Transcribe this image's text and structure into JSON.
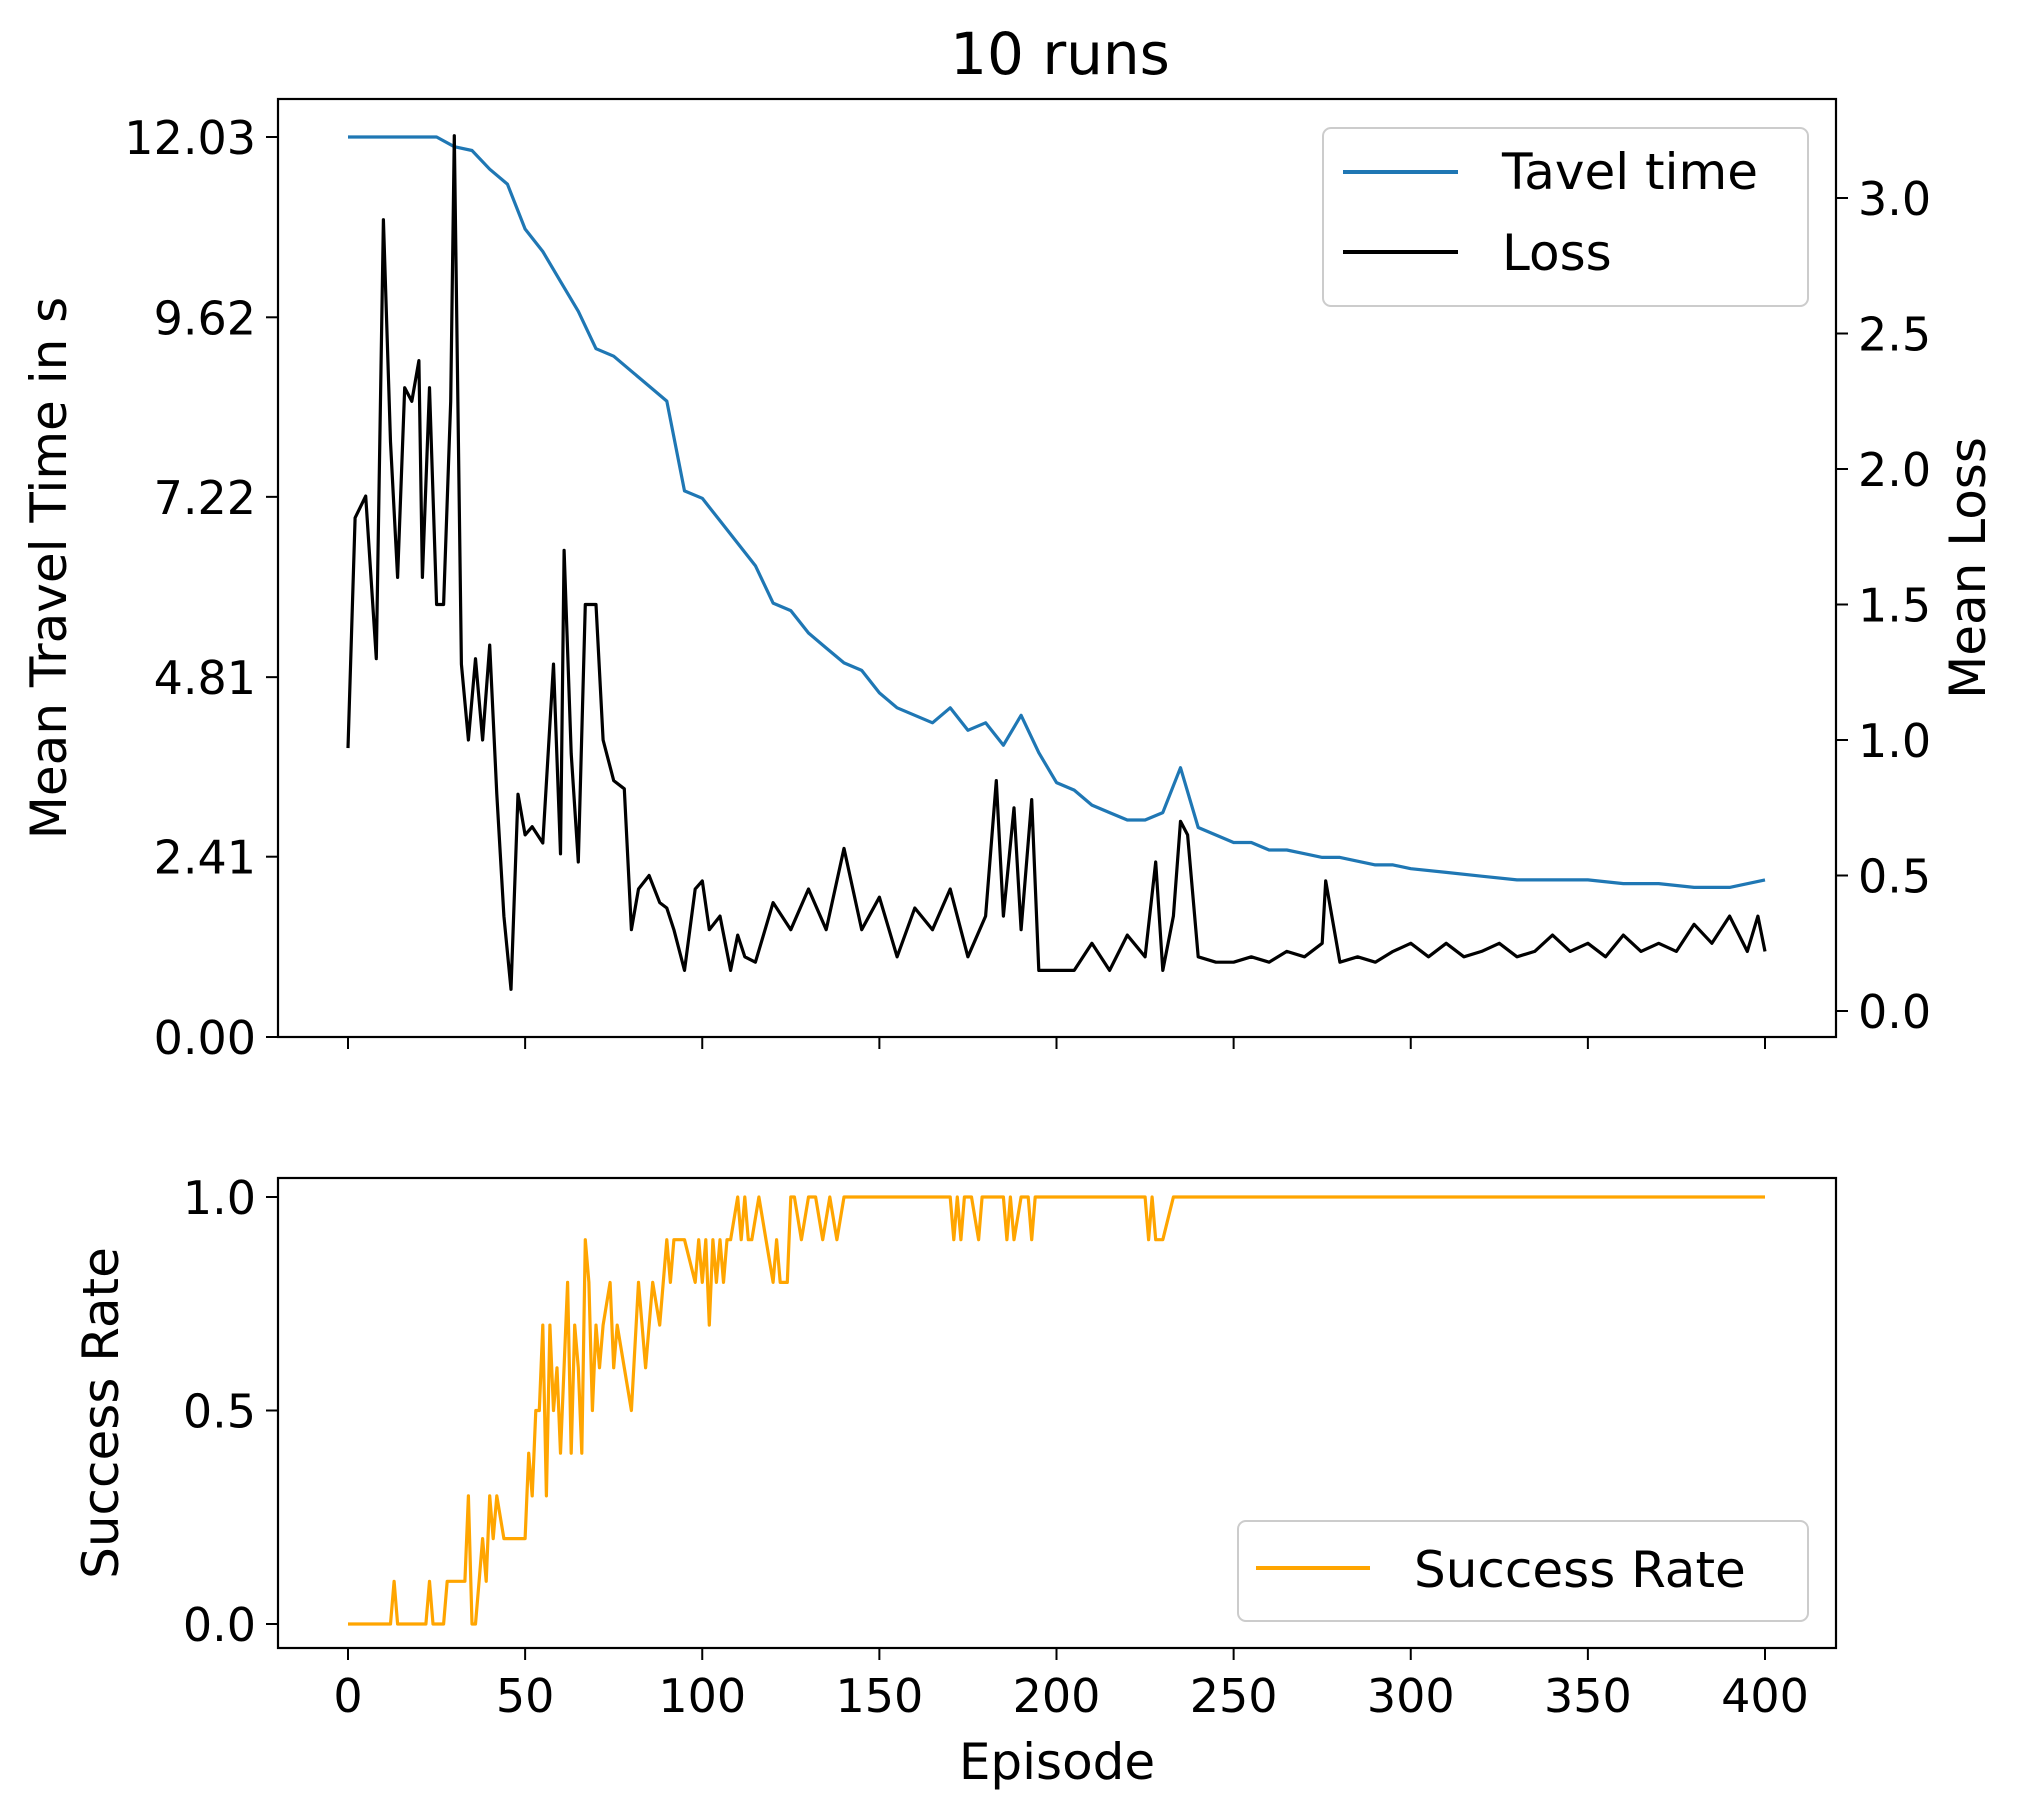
{
  "chart_data": [
    {
      "type": "line",
      "title": "10 runs",
      "ylabel": "Mean Travel Time in s",
      "ylabel_right": "Mean Loss",
      "xlim": [
        0,
        400
      ],
      "ylim": [
        0,
        12.03
      ],
      "ylim_right": [
        0,
        3.26
      ],
      "yticks": [
        "0.00",
        "2.41",
        "4.81",
        "7.22",
        "9.62",
        "12.03"
      ],
      "yticks_right": [
        "0.0",
        "0.5",
        "1.0",
        "1.5",
        "2.0",
        "2.5",
        "3.0"
      ],
      "legend_position": "upper-right",
      "series": [
        {
          "name": "Tavel time",
          "color": "#1f77b4",
          "x": [
            0,
            5,
            10,
            15,
            20,
            25,
            30,
            35,
            40,
            45,
            50,
            55,
            60,
            65,
            70,
            75,
            80,
            85,
            90,
            95,
            100,
            105,
            110,
            115,
            120,
            125,
            130,
            135,
            140,
            145,
            150,
            155,
            160,
            165,
            170,
            175,
            180,
            185,
            190,
            195,
            200,
            205,
            210,
            215,
            220,
            225,
            230,
            235,
            240,
            245,
            250,
            255,
            260,
            265,
            270,
            275,
            280,
            285,
            290,
            295,
            300,
            310,
            320,
            330,
            340,
            350,
            360,
            370,
            380,
            390,
            400
          ],
          "values": [
            12.03,
            12.03,
            12.03,
            12.03,
            12.03,
            12.03,
            11.9,
            11.85,
            11.6,
            11.4,
            10.8,
            10.5,
            10.1,
            9.7,
            9.2,
            9.1,
            8.9,
            8.7,
            8.5,
            7.3,
            7.2,
            6.9,
            6.6,
            6.3,
            5.8,
            5.7,
            5.4,
            5.2,
            5.0,
            4.9,
            4.6,
            4.4,
            4.3,
            4.2,
            4.4,
            4.1,
            4.2,
            3.9,
            4.3,
            3.8,
            3.4,
            3.3,
            3.1,
            3.0,
            2.9,
            2.9,
            3.0,
            3.6,
            2.8,
            2.7,
            2.6,
            2.6,
            2.5,
            2.5,
            2.45,
            2.4,
            2.4,
            2.35,
            2.3,
            2.3,
            2.25,
            2.2,
            2.15,
            2.1,
            2.1,
            2.1,
            2.05,
            2.05,
            2.0,
            2.0,
            2.1
          ]
        },
        {
          "name": "Loss",
          "color": "#000000",
          "axis": "right",
          "x": [
            0,
            2,
            5,
            8,
            10,
            12,
            14,
            16,
            18,
            20,
            21,
            23,
            25,
            27,
            29,
            30,
            32,
            34,
            36,
            38,
            40,
            42,
            44,
            46,
            48,
            50,
            52,
            55,
            58,
            60,
            61,
            63,
            65,
            67,
            70,
            72,
            75,
            78,
            80,
            82,
            85,
            88,
            90,
            92,
            95,
            98,
            100,
            102,
            105,
            108,
            110,
            112,
            115,
            120,
            125,
            130,
            135,
            140,
            145,
            150,
            155,
            160,
            165,
            170,
            175,
            180,
            183,
            185,
            188,
            190,
            193,
            195,
            200,
            205,
            210,
            215,
            220,
            225,
            228,
            230,
            233,
            235,
            237,
            240,
            245,
            250,
            255,
            260,
            265,
            270,
            275,
            276,
            280,
            285,
            290,
            295,
            300,
            305,
            310,
            315,
            320,
            325,
            330,
            335,
            340,
            345,
            350,
            355,
            360,
            365,
            370,
            375,
            380,
            385,
            390,
            395,
            398,
            400
          ],
          "values": [
            0.97,
            1.82,
            1.9,
            1.3,
            2.92,
            2.1,
            1.6,
            2.3,
            2.25,
            2.4,
            1.6,
            2.3,
            1.5,
            1.5,
            2.25,
            3.23,
            1.28,
            1.0,
            1.3,
            1.0,
            1.35,
            0.8,
            0.35,
            0.08,
            0.8,
            0.65,
            0.68,
            0.62,
            1.28,
            0.58,
            1.7,
            0.95,
            0.55,
            1.5,
            1.5,
            1.0,
            0.85,
            0.82,
            0.3,
            0.45,
            0.5,
            0.4,
            0.38,
            0.3,
            0.15,
            0.45,
            0.48,
            0.3,
            0.35,
            0.15,
            0.28,
            0.2,
            0.18,
            0.4,
            0.3,
            0.45,
            0.3,
            0.6,
            0.3,
            0.42,
            0.2,
            0.38,
            0.3,
            0.45,
            0.2,
            0.35,
            0.85,
            0.35,
            0.75,
            0.3,
            0.78,
            0.15,
            0.15,
            0.15,
            0.25,
            0.15,
            0.28,
            0.2,
            0.55,
            0.15,
            0.35,
            0.7,
            0.65,
            0.2,
            0.18,
            0.18,
            0.2,
            0.18,
            0.22,
            0.2,
            0.25,
            0.48,
            0.18,
            0.2,
            0.18,
            0.22,
            0.25,
            0.2,
            0.25,
            0.2,
            0.22,
            0.25,
            0.2,
            0.22,
            0.28,
            0.22,
            0.25,
            0.2,
            0.28,
            0.22,
            0.25,
            0.22,
            0.32,
            0.25,
            0.35,
            0.22,
            0.35,
            0.22
          ]
        }
      ]
    },
    {
      "type": "line",
      "xlabel": "Episode",
      "ylabel": "Success Rate",
      "xlim": [
        0,
        400
      ],
      "ylim": [
        0,
        1
      ],
      "xticks": [
        "0",
        "50",
        "100",
        "150",
        "200",
        "250",
        "300",
        "350",
        "400"
      ],
      "yticks": [
        "0.0",
        "0.5",
        "1.0"
      ],
      "legend_position": "lower-right",
      "series": [
        {
          "name": "Success Rate",
          "color": "#ffa500",
          "x": [
            0,
            12,
            13,
            14,
            22,
            23,
            24,
            27,
            28,
            30,
            31,
            33,
            34,
            35,
            36,
            37,
            38,
            39,
            40,
            41,
            42,
            44,
            45,
            50,
            51,
            52,
            53,
            54,
            55,
            56,
            57,
            58,
            59,
            60,
            62,
            63,
            64,
            65,
            66,
            67,
            68,
            69,
            70,
            71,
            72,
            74,
            75,
            76,
            78,
            80,
            82,
            84,
            86,
            88,
            90,
            91,
            92,
            93,
            95,
            98,
            99,
            100,
            101,
            102,
            103,
            104,
            105,
            106,
            107,
            108,
            110,
            111,
            112,
            113,
            114,
            116,
            118,
            120,
            121,
            122,
            124,
            125,
            126,
            128,
            130,
            132,
            134,
            136,
            138,
            140,
            142,
            144,
            146,
            150,
            160,
            170,
            171,
            172,
            173,
            174,
            176,
            178,
            179,
            180,
            185,
            186,
            187,
            188,
            190,
            191,
            192,
            193,
            194,
            195,
            196,
            200,
            220,
            225,
            226,
            227,
            228,
            230,
            233,
            236,
            237,
            240,
            260,
            300,
            350,
            400
          ],
          "values": [
            0,
            0,
            0.1,
            0,
            0,
            0.1,
            0,
            0,
            0.1,
            0.1,
            0.1,
            0.1,
            0.3,
            0,
            0,
            0.1,
            0.2,
            0.1,
            0.3,
            0.2,
            0.3,
            0.2,
            0.2,
            0.2,
            0.4,
            0.3,
            0.5,
            0.5,
            0.7,
            0.3,
            0.7,
            0.5,
            0.6,
            0.4,
            0.8,
            0.4,
            0.7,
            0.6,
            0.4,
            0.9,
            0.8,
            0.5,
            0.7,
            0.6,
            0.7,
            0.8,
            0.6,
            0.7,
            0.6,
            0.5,
            0.8,
            0.6,
            0.8,
            0.7,
            0.9,
            0.8,
            0.9,
            0.9,
            0.9,
            0.8,
            0.9,
            0.8,
            0.9,
            0.7,
            0.9,
            0.8,
            0.9,
            0.8,
            0.9,
            0.9,
            1.0,
            0.9,
            1.0,
            0.9,
            0.9,
            1.0,
            0.9,
            0.8,
            0.9,
            0.8,
            0.8,
            1.0,
            1.0,
            0.9,
            1.0,
            1.0,
            0.9,
            1.0,
            0.9,
            1.0,
            1.0,
            1.0,
            1.0,
            1.0,
            1.0,
            1.0,
            0.9,
            1.0,
            0.9,
            1.0,
            1.0,
            0.9,
            1.0,
            1.0,
            1.0,
            0.9,
            1.0,
            0.9,
            1.0,
            1.0,
            1.0,
            0.9,
            1.0,
            1.0,
            1.0,
            1.0,
            1.0,
            1.0,
            0.9,
            1.0,
            0.9,
            0.9,
            1.0,
            1.0,
            1.0,
            1.0,
            1.0,
            1.0,
            1.0,
            1.0
          ]
        }
      ]
    }
  ]
}
